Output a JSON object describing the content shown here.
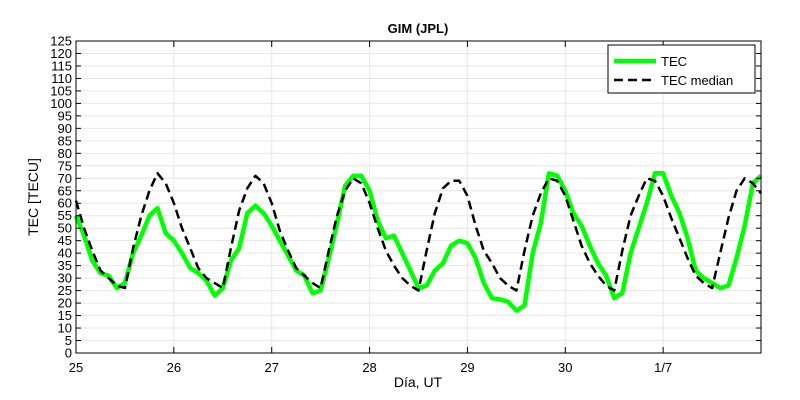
{
  "chart_data": {
    "type": "line",
    "title": "GIM (JPL)",
    "xlabel": "Día, UT",
    "ylabel": "TEC [TECU]",
    "xlim": [
      0,
      7
    ],
    "ylim": [
      0,
      125
    ],
    "x_ticks": [
      0,
      1,
      2,
      3,
      4,
      5,
      6
    ],
    "x_tick_labels": [
      "25",
      "26",
      "27",
      "28",
      "29",
      "30",
      "1/7"
    ],
    "y_ticks": [
      0,
      5,
      10,
      15,
      20,
      25,
      30,
      35,
      40,
      45,
      50,
      55,
      60,
      65,
      70,
      75,
      80,
      85,
      90,
      95,
      100,
      105,
      110,
      115,
      120,
      125
    ],
    "y_tick_labels": [
      "0",
      "5",
      "10",
      "15",
      "20",
      "25",
      "30",
      "35",
      "40",
      "45",
      "50",
      "55",
      "60",
      "65",
      "70",
      "75",
      "80",
      "85",
      "90",
      "95",
      "100",
      "105",
      "110",
      "115",
      "120",
      "125"
    ],
    "grid": true,
    "legend_position": "top-right",
    "colors": {
      "TEC": "#00ff00",
      "TEC median": "#000000"
    },
    "series": [
      {
        "name": "TEC",
        "style": "solid",
        "x": [
          0,
          0.083,
          0.167,
          0.25,
          0.333,
          0.417,
          0.5,
          0.583,
          0.667,
          0.75,
          0.833,
          0.917,
          1,
          1.083,
          1.167,
          1.25,
          1.333,
          1.417,
          1.5,
          1.583,
          1.667,
          1.75,
          1.833,
          1.917,
          2,
          2.083,
          2.167,
          2.25,
          2.333,
          2.417,
          2.5,
          2.583,
          2.667,
          2.75,
          2.833,
          2.917,
          3,
          3.083,
          3.167,
          3.25,
          3.333,
          3.417,
          3.5,
          3.583,
          3.667,
          3.75,
          3.833,
          3.917,
          4,
          4.083,
          4.167,
          4.25,
          4.333,
          4.417,
          4.5,
          4.583,
          4.667,
          4.75,
          4.833,
          4.917,
          5,
          5.083,
          5.167,
          5.25,
          5.333,
          5.417,
          5.5,
          5.583,
          5.667,
          5.75,
          5.833,
          5.917,
          6,
          6.083,
          6.167,
          6.25,
          6.333,
          6.417,
          6.5,
          6.583,
          6.667,
          6.75,
          6.833,
          6.917,
          7
        ],
        "values": [
          55,
          47,
          37,
          32,
          31,
          26,
          28,
          40,
          47,
          55,
          58,
          48,
          45,
          40,
          34,
          32,
          29,
          23,
          26,
          37,
          42,
          56,
          59,
          56,
          51,
          45,
          39,
          33,
          31,
          24,
          25,
          38,
          52,
          67,
          71,
          71,
          65,
          53,
          46,
          47,
          40,
          33,
          26,
          27,
          33,
          36,
          43,
          45,
          44,
          38,
          28,
          22,
          21.5,
          20.5,
          17,
          19,
          40,
          52,
          72,
          71,
          65,
          56,
          51,
          43,
          36,
          31,
          22,
          24,
          40,
          50,
          60,
          72,
          72,
          63,
          56,
          46,
          33,
          30,
          28,
          26,
          27,
          38,
          51,
          68,
          71
        ]
      },
      {
        "name": "TEC median",
        "style": "dashed",
        "x": [
          0,
          0.083,
          0.167,
          0.25,
          0.333,
          0.417,
          0.5,
          0.583,
          0.667,
          0.75,
          0.833,
          0.917,
          1,
          1.083,
          1.167,
          1.25,
          1.333,
          1.417,
          1.5,
          1.583,
          1.667,
          1.75,
          1.833,
          1.917,
          2,
          2.083,
          2.167,
          2.25,
          2.333,
          2.417,
          2.5,
          2.583,
          2.667,
          2.75,
          2.833,
          2.917,
          3,
          3.083,
          3.167,
          3.25,
          3.333,
          3.417,
          3.5,
          3.583,
          3.667,
          3.75,
          3.833,
          3.917,
          4,
          4.083,
          4.167,
          4.25,
          4.333,
          4.417,
          4.5,
          4.583,
          4.667,
          4.75,
          4.833,
          4.917,
          5,
          5.083,
          5.167,
          5.25,
          5.333,
          5.417,
          5.5,
          5.583,
          5.667,
          5.75,
          5.833,
          5.917,
          6,
          6.083,
          6.167,
          6.25,
          6.333,
          6.417,
          6.5,
          6.583,
          6.667,
          6.75,
          6.833,
          6.917,
          7
        ],
        "values": [
          61,
          50,
          41,
          33,
          30,
          27,
          26,
          42,
          55,
          65,
          72,
          68,
          60,
          50,
          42,
          34,
          30,
          28,
          26,
          42,
          57,
          66,
          71,
          68,
          60,
          49,
          41,
          34,
          31,
          28,
          26,
          41,
          55,
          65,
          70,
          68,
          60,
          50,
          41,
          35,
          30,
          27,
          25,
          41,
          56,
          66,
          69,
          69,
          63,
          51,
          41,
          36,
          30,
          27,
          25,
          41,
          55,
          64,
          70,
          69,
          63,
          53,
          43,
          36,
          31,
          27,
          25,
          41,
          55,
          63,
          70,
          69,
          63,
          54,
          46,
          38,
          31,
          28,
          26,
          40,
          54,
          65,
          70,
          68,
          64
        ]
      }
    ]
  }
}
